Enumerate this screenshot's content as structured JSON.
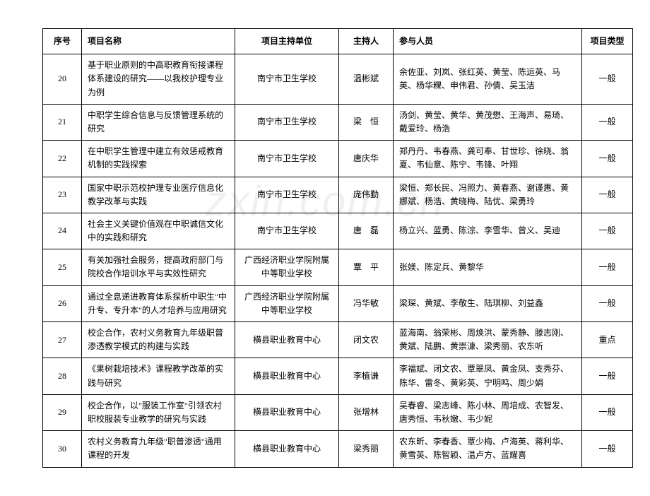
{
  "table": {
    "columns": [
      "序号",
      "项目名称",
      "项目主持单位",
      "主持人",
      "参与人员",
      "项目类型"
    ],
    "rows": [
      {
        "seq": "20",
        "name": "基于职业原则的中高职教育衔接课程体系建设的研究——以我校护理专业为例",
        "unit": "南宁市卫生学校",
        "host": "温彬斌",
        "people": "余佐亚、刘岚、张红英、黄莹、陈运英、马英、杨华粿、申伟君、孙倩、吴玉洁",
        "type": "一般"
      },
      {
        "seq": "21",
        "name": "中职学生综合信息与反馈管理系统的研究",
        "unit": "南宁市卫生学校",
        "host": "梁　恒",
        "people": "汤剑、黄莹、黄华、黄茂懋、王海声、易琦、戴爱玲、杨浩",
        "type": "一般"
      },
      {
        "seq": "22",
        "name": "在中职学生管理中建立有效惩戒教育机制的实践探索",
        "unit": "南宁市卫生学校",
        "host": "唐庆华",
        "people": "郑丹丹、韦春燕、龚可奉、甘世珍、徐晓、翁夏、韦仙意、陈宁、韦锋、叶翔",
        "type": "一般"
      },
      {
        "seq": "23",
        "name": "国家中职示范校护理专业医疗信息化教学改革与实践",
        "unit": "南宁市卫生学校",
        "host": "庞伟勤",
        "people": "梁恒、郑长民、冯照力、黄春燕、谢谨惠、黄娜斌、杨浩、黄晓梅、陆优、梁勇玲",
        "type": "一般"
      },
      {
        "seq": "24",
        "name": "社会主义关键价值观在中职诚信文化中的实践和研究",
        "unit": "南宁市卫生学校",
        "host": "唐　磊",
        "people": "杨立兴、蓝勇、陈淙、李雪华、曾义、吴迪",
        "type": "一般"
      },
      {
        "seq": "25",
        "name": "有关加强社会服务，提高政府部门与院校合作培训水平与实效性研究",
        "unit": "广西经济职业学院附属中等职业学校",
        "host": "覃　平",
        "people": "张媄、陈定兵、黄黎华",
        "type": "一般"
      },
      {
        "seq": "26",
        "name": "通过全息递进教育体系探析中职生\"中升专、专升本\"的人才培养与应用研究",
        "unit": "广西经济职业学院附属中等职业学校",
        "host": "冯华敏",
        "people": "梁琛、黄斌、李敬生、陆琪柳、刘益鑫",
        "type": "一般"
      },
      {
        "seq": "27",
        "name": "校企合作，农村义务教育九年级职普渗透教学模式的构建与实践",
        "unit": "横县职业教育中心",
        "host": "闭文农",
        "people": "蓝海南、翁荣彬、周焕洪、蒙秀静、滕志刚、黄斌、陆鹏、黄崇漮、梁秀丽、农东听",
        "type": "重点"
      },
      {
        "seq": "28",
        "name": "《果树栽培技术》课程教学改革的实践与研究",
        "unit": "横县职业教育中心",
        "host": "李植谦",
        "people": "李福斌、闭文农、覃翠凤、黄金凤、支秀芬、陈华、雷冬、黄彩英、宁明鸣、周少娟",
        "type": "一般"
      },
      {
        "seq": "29",
        "name": "校企合作，以\"服装工作室\"引领农村职校服装专业教学的研究与实践",
        "unit": "横县职业教育中心",
        "host": "张增林",
        "people": "吴春睿、梁志峰、陈小林、周培成、农智发、唐秀恒、韦秋嫩、韦少妮",
        "type": "一般"
      },
      {
        "seq": "30",
        "name": "农村义务教育九年级\"职普渗透\"通用课程的开发",
        "unit": "横县职业教育中心",
        "host": "梁秀丽",
        "people": "农东昕、李春香、覃少梅、卢海英、蒋利华、黄雪英、陈智颖、温卢方、蓝耀喜",
        "type": "一般"
      }
    ],
    "border_color": "#000000",
    "background_color": "#ffffff",
    "font_size": 12
  },
  "watermark": "zxin.com.cn"
}
